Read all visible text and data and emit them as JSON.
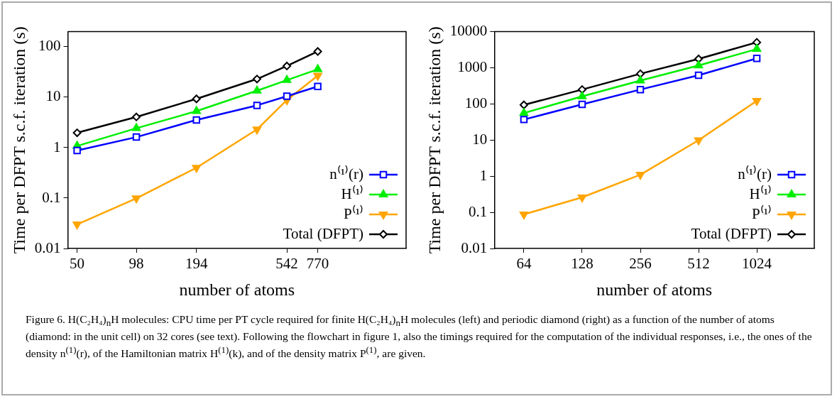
{
  "chart_data": [
    {
      "type": "line",
      "xlabel": "number of atoms",
      "ylabel": "Time per DFPT s.c.f. iteration (s)",
      "log": "xy",
      "grid": false,
      "legend": "bottom right",
      "x": [
        50,
        98,
        194,
        386,
        542,
        770
      ],
      "xlim": [
        45,
        2100
      ],
      "xticks": [
        50,
        98,
        194,
        542,
        770
      ],
      "ylim": [
        0.01,
        200
      ],
      "yticks": [
        0.01,
        0.1,
        1,
        10,
        100
      ],
      "series": [
        {
          "name": "n⁽¹⁾(r)",
          "color": "#0000ff",
          "marker": "square",
          "values": [
            0.88,
            1.62,
            3.55,
            6.9,
            10.5,
            16.4
          ]
        },
        {
          "name": "H⁽¹⁾",
          "color": "#00ee00",
          "marker": "triangle",
          "values": [
            1.08,
            2.43,
            5.3,
            13.5,
            21.9,
            35.9
          ]
        },
        {
          "name": "P⁽¹⁾",
          "color": "#ffa500",
          "marker": "triangle-down",
          "values": [
            0.03,
            0.099,
            0.4,
            2.3,
            8.8,
            26.9
          ]
        },
        {
          "name": "Total (DFPT)",
          "color": "#000000",
          "marker": "diamond",
          "values": [
            1.97,
            4.07,
            9.3,
            23,
            41.7,
            81
          ]
        }
      ],
      "annotations": [
        "Figure 6. H(C₂H₄)$_{n}$H molecules: CPU time per PT cycle required for finite H(C₂H₄)$_{n}$H molecules (left) and periodic diamond (right) as a function of the number of atoms (diamond: in the unit cell) on 32 cores (see text). Following the flowchart in figure 1, also the timings required for the computation of the individual responses, i.e., the ones of the density n$^{(1)}$(r), of the Hamiltonian matrix H$^{(1)}$(k), and of the density matrix P$^{(1)}$, are given."
      ]
    },
    {
      "type": "line",
      "xlabel": "number of atoms",
      "ylabel": "Time per DFPT s.c.f. iteration (s)",
      "log": "xy",
      "grid": false,
      "legend": "bottom right",
      "x": [
        64,
        128,
        256,
        512,
        1024
      ],
      "xlim": [
        45,
        2030
      ],
      "xticks": [
        64,
        128,
        256,
        512,
        1024
      ],
      "ylim": [
        0.01,
        10000
      ],
      "yticks": [
        0.01,
        0.1,
        1,
        10,
        100,
        1000,
        10000
      ],
      "series": [
        {
          "name": "n⁽¹⁾(r)",
          "color": "#0000ff",
          "marker": "square",
          "values": [
            37,
            97,
            250,
            623,
            1820
          ]
        },
        {
          "name": "H⁽¹⁾",
          "color": "#00ee00",
          "marker": "triangle",
          "values": [
            56,
            162,
            443,
            1160,
            3300
          ]
        },
        {
          "name": "P⁽¹⁾",
          "color": "#ffa500",
          "marker": "triangle-down",
          "values": [
            0.088,
            0.26,
            1.1,
            9.9,
            122
          ]
        },
        {
          "name": "Total (DFPT)",
          "color": "#000000",
          "marker": "diamond",
          "values": [
            94,
            250,
            684,
            1760,
            5060
          ]
        }
      ]
    }
  ]
}
